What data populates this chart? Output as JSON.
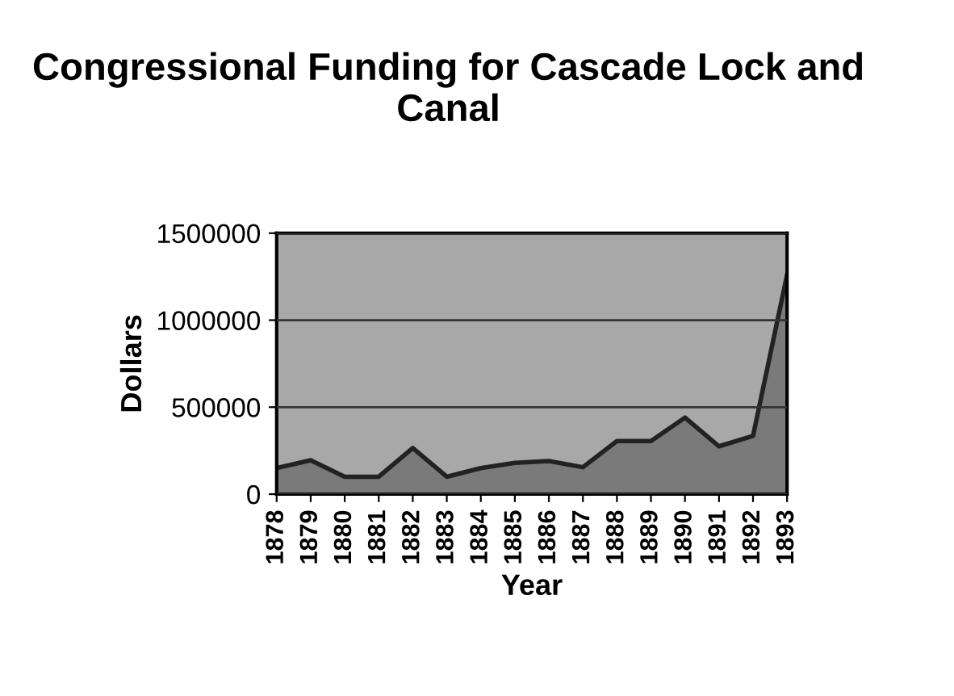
{
  "chart_data": {
    "type": "area",
    "title": "Congressional Funding for Cascade Lock and Canal",
    "xlabel": "Year",
    "ylabel": "Dollars",
    "categories": [
      "1878",
      "1879",
      "1880",
      "1881",
      "1882",
      "1883",
      "1884",
      "1885",
      "1886",
      "1887",
      "1888",
      "1889",
      "1890",
      "1891",
      "1892",
      "1893"
    ],
    "series": [
      {
        "color": "#7a7a7a",
        "values": [
          150000,
          195000,
          100000,
          100000,
          265000,
          100000,
          150000,
          180000,
          190000,
          155000,
          305000,
          305000,
          440000,
          275000,
          335000,
          1260000
        ]
      }
    ],
    "ylim": [
      0,
      1500000
    ],
    "yticks": [
      0,
      500000,
      1000000,
      1500000
    ],
    "grid": "y",
    "legend": false
  }
}
